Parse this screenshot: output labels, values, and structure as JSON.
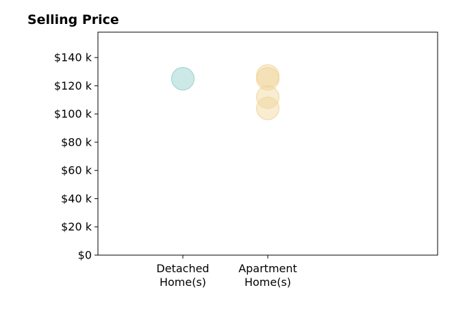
{
  "chart_data": {
    "type": "scatter",
    "title": "Selling Price",
    "xlabel": "",
    "ylabel": "",
    "categories": [
      [
        "Detached",
        "Home(s)"
      ],
      [
        "Apartment",
        "Home(s)"
      ]
    ],
    "y_ticks": [
      0,
      20000,
      40000,
      60000,
      80000,
      100000,
      120000,
      140000
    ],
    "y_tick_labels": [
      "$0",
      "$20 k",
      "$40 k",
      "$60 k",
      "$80 k",
      "$100 k",
      "$120 k",
      "$140 k"
    ],
    "ylim": [
      0,
      158000
    ],
    "grid": false,
    "legend": "none",
    "series": [
      {
        "category": 0,
        "color": "#8ecfc9",
        "values": [
          125000
        ]
      },
      {
        "category": 1,
        "color": "#f0d59a",
        "values": [
          127000,
          125000,
          112000,
          104000
        ]
      }
    ]
  }
}
